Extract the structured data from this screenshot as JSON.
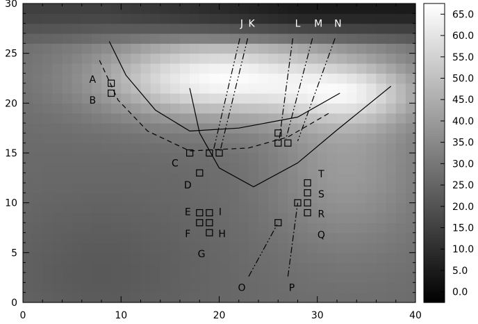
{
  "chart_data": {
    "type": "heatmap",
    "title": "",
    "xlabel": "",
    "ylabel": "",
    "xlim": [
      0,
      40
    ],
    "ylim": [
      0,
      30
    ],
    "x_ticks": [
      0,
      10,
      20,
      30,
      40
    ],
    "y_ticks": [
      0,
      5,
      10,
      15,
      20,
      25,
      30
    ],
    "colorbar": {
      "colormap": "grayscale",
      "range": [
        -2.5,
        67.5
      ],
      "ticks": [
        "0.0",
        "5.0",
        "10.0",
        "15.0",
        "20.0",
        "25.0",
        "30.0",
        "35.0",
        "40.0",
        "45.0",
        "50.0",
        "55.0",
        "60.0",
        "65.0"
      ],
      "tick_values": [
        0,
        5,
        10,
        15,
        20,
        25,
        30,
        35,
        40,
        45,
        50,
        55,
        60,
        65
      ]
    },
    "field": {
      "grid": [
        40,
        30
      ],
      "background_level": 27,
      "warm_band": {
        "center": [
          20,
          22.5
        ],
        "peak_value": 66
      },
      "lower_right_region": {
        "center": [
          33,
          14
        ],
        "peak_value": 40
      },
      "top_strip_value": 5,
      "lower_left_value": 22
    },
    "lines": [
      {
        "name": "solid-curve-upper",
        "style": "solid",
        "points": [
          [
            8.8,
            26.2
          ],
          [
            10.5,
            22.8
          ],
          [
            13.5,
            19.3
          ],
          [
            17,
            17.2
          ],
          [
            22,
            17.5
          ],
          [
            28,
            18.6
          ],
          [
            32.3,
            21
          ]
        ]
      },
      {
        "name": "solid-curve-lower",
        "style": "solid",
        "points": [
          [
            17,
            21.5
          ],
          [
            18,
            17
          ],
          [
            20,
            13.5
          ],
          [
            23.5,
            11.6
          ],
          [
            28,
            14
          ],
          [
            32,
            17.3
          ],
          [
            37.5,
            21.7
          ]
        ]
      },
      {
        "name": "dashed-curve",
        "style": "dashed",
        "points": [
          [
            7.8,
            24.3
          ],
          [
            9.7,
            20.3
          ],
          [
            12.7,
            17.2
          ],
          [
            17,
            15.2
          ],
          [
            23,
            15.5
          ],
          [
            27,
            16.6
          ],
          [
            31.2,
            19
          ]
        ]
      },
      {
        "name": "line-J",
        "style": "dash-dot-dot",
        "points": [
          [
            22.1,
            26.5
          ],
          [
            19.4,
            15.2
          ]
        ]
      },
      {
        "name": "line-K",
        "style": "dash-dot-dot",
        "points": [
          [
            22.9,
            26.5
          ],
          [
            20.1,
            15.2
          ]
        ]
      },
      {
        "name": "line-L",
        "style": "dash-dot",
        "points": [
          [
            27.5,
            26.5
          ],
          [
            26.1,
            16.2
          ]
        ]
      },
      {
        "name": "line-M",
        "style": "dash-dot-dot",
        "points": [
          [
            29.5,
            26.5
          ],
          [
            26.8,
            16.4
          ]
        ]
      },
      {
        "name": "line-N",
        "style": "dash-dot-dot",
        "points": [
          [
            31.8,
            26.5
          ],
          [
            28,
            16.2
          ]
        ]
      },
      {
        "name": "line-O",
        "style": "dash-dot-dot",
        "points": [
          [
            23,
            2.6
          ],
          [
            26,
            8
          ]
        ]
      },
      {
        "name": "line-P",
        "style": "dash-dot",
        "points": [
          [
            27,
            2.6
          ],
          [
            28,
            10
          ]
        ]
      }
    ],
    "squares": [
      [
        9,
        22
      ],
      [
        9,
        21
      ],
      [
        17,
        15
      ],
      [
        19,
        15
      ],
      [
        20,
        15
      ],
      [
        18,
        13
      ],
      [
        26,
        17
      ],
      [
        26,
        16
      ],
      [
        27,
        16
      ],
      [
        18,
        9
      ],
      [
        19,
        9
      ],
      [
        18,
        8
      ],
      [
        19,
        8
      ],
      [
        19,
        7
      ],
      [
        26,
        8
      ],
      [
        28,
        10
      ],
      [
        29,
        12
      ],
      [
        29,
        11
      ],
      [
        29,
        10
      ],
      [
        29,
        9
      ]
    ],
    "marker_labels": [
      {
        "text": "A",
        "x": 7.1,
        "y": 22.4
      },
      {
        "text": "B",
        "x": 7.1,
        "y": 20.3
      },
      {
        "text": "C",
        "x": 15.5,
        "y": 14
      },
      {
        "text": "D",
        "x": 16.8,
        "y": 11.8
      },
      {
        "text": "E",
        "x": 16.8,
        "y": 9.1
      },
      {
        "text": "F",
        "x": 16.8,
        "y": 6.9
      },
      {
        "text": "G",
        "x": 18.2,
        "y": 4.9
      },
      {
        "text": "H",
        "x": 20.3,
        "y": 6.9
      },
      {
        "text": "I",
        "x": 20.1,
        "y": 9.1
      },
      {
        "text": "J",
        "x": 22.3,
        "y": 28
      },
      {
        "text": "K",
        "x": 23.3,
        "y": 28
      },
      {
        "text": "L",
        "x": 28,
        "y": 28
      },
      {
        "text": "M",
        "x": 30.1,
        "y": 28
      },
      {
        "text": "N",
        "x": 32.1,
        "y": 28
      },
      {
        "text": "O",
        "x": 22.3,
        "y": 1.5
      },
      {
        "text": "P",
        "x": 27.4,
        "y": 1.5
      },
      {
        "text": "Q",
        "x": 30.4,
        "y": 6.8
      },
      {
        "text": "R",
        "x": 30.4,
        "y": 8.9
      },
      {
        "text": "S",
        "x": 30.4,
        "y": 10.9
      },
      {
        "text": "T",
        "x": 30.4,
        "y": 12.9
      }
    ]
  }
}
